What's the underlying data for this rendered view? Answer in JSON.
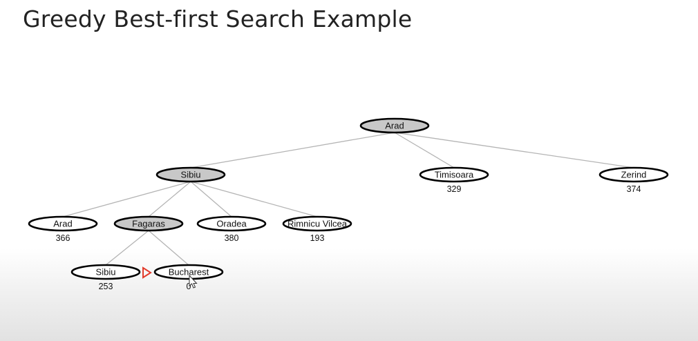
{
  "title": "Greedy Best-first Search Example",
  "colors": {
    "expanded_fill": "#c8c8c8",
    "frontier_fill": "#ffffff",
    "edge": "#b4b4b4",
    "pointer": "#e23b2b"
  },
  "tree": {
    "nodes": [
      {
        "id": "arad-root",
        "label": "Arad",
        "h": "",
        "expanded": true
      },
      {
        "id": "sibiu",
        "label": "Sibiu",
        "h": "",
        "expanded": true
      },
      {
        "id": "timisoara",
        "label": "Timisoara",
        "h": "329",
        "expanded": false
      },
      {
        "id": "zerind",
        "label": "Zerind",
        "h": "374",
        "expanded": false
      },
      {
        "id": "arad",
        "label": "Arad",
        "h": "366",
        "expanded": false
      },
      {
        "id": "fagaras",
        "label": "Fagaras",
        "h": "",
        "expanded": true
      },
      {
        "id": "oradea",
        "label": "Oradea",
        "h": "380",
        "expanded": false
      },
      {
        "id": "rimnicu-vilcea",
        "label": "Rimnicu Vilcea",
        "h": "193",
        "expanded": false
      },
      {
        "id": "sibiu-2",
        "label": "Sibiu",
        "h": "253",
        "expanded": false
      },
      {
        "id": "bucharest",
        "label": "Bucharest",
        "h": "0",
        "expanded": false
      }
    ],
    "edges": [
      [
        "arad-root",
        "sibiu"
      ],
      [
        "arad-root",
        "timisoara"
      ],
      [
        "arad-root",
        "zerind"
      ],
      [
        "sibiu",
        "arad"
      ],
      [
        "sibiu",
        "fagaras"
      ],
      [
        "sibiu",
        "oradea"
      ],
      [
        "sibiu",
        "rimnicu-vilcea"
      ],
      [
        "fagaras",
        "sibiu-2"
      ],
      [
        "fagaras",
        "bucharest"
      ]
    ]
  }
}
